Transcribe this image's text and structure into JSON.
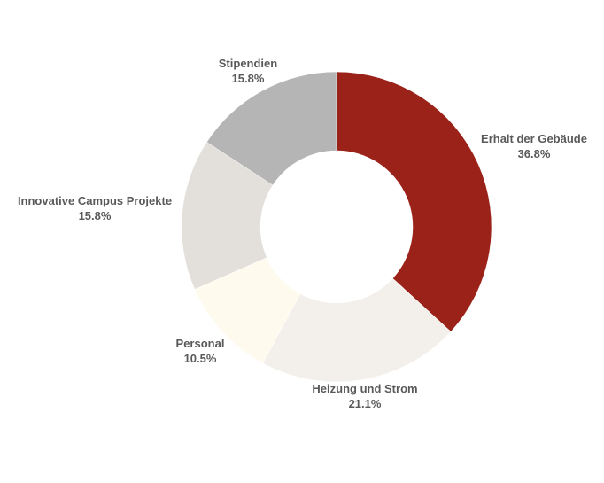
{
  "chart_data": {
    "type": "pie",
    "donut": true,
    "title": "",
    "legend": "none",
    "slices": [
      {
        "label": "Erhalt der Gebäude",
        "value": 36.8,
        "display": "36.8%",
        "color": "#9b2218"
      },
      {
        "label": "Heizung und Strom",
        "value": 21.1,
        "display": "21.1%",
        "color": "#f3f0eb"
      },
      {
        "label": "Personal",
        "value": 10.5,
        "display": "10.5%",
        "color": "#fefbee"
      },
      {
        "label": "Innovative Campus Projekte",
        "value": 15.8,
        "display": "15.8%",
        "color": "#e3dfda"
      },
      {
        "label": "Stipendien",
        "value": 15.8,
        "display": "15.8%",
        "color": "#b5b5b5"
      }
    ]
  }
}
